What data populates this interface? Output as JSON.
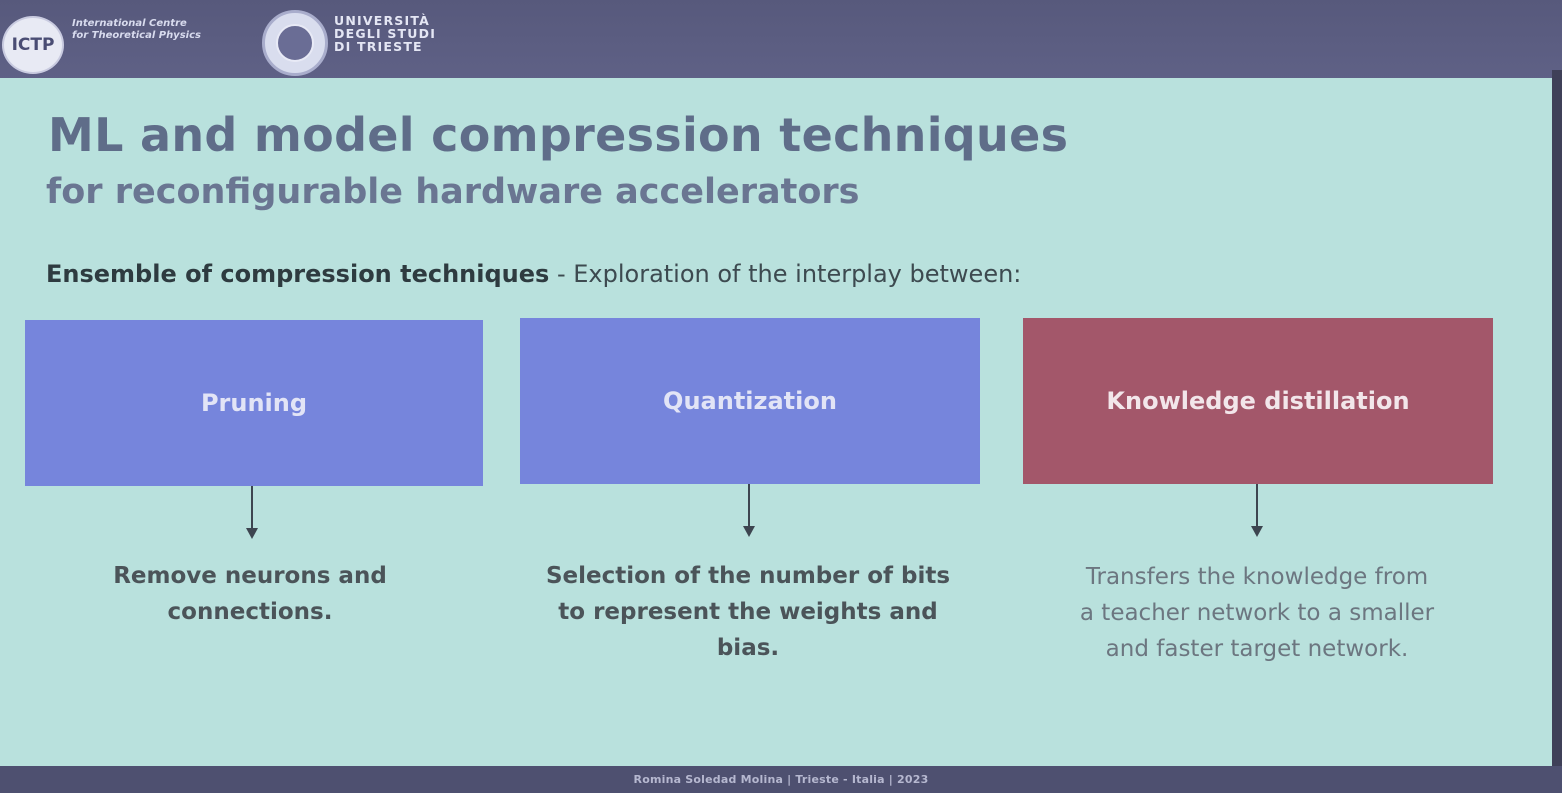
{
  "header": {
    "ictp_logo_text": "ICTP",
    "ictp_tagline_small": "",
    "ictp_name_line1": "International Centre",
    "ictp_name_line2": "for Theoretical Physics",
    "university_line1": "UNIVERSITÀ",
    "university_line2": "DEGLI STUDI",
    "university_line3": "DI TRIESTE"
  },
  "slide": {
    "title": "ML and model compression techniques",
    "subtitle": "for reconfigurable hardware accelerators",
    "intro_bold": "Ensemble of compression techniques",
    "intro_rest": " - Exploration of the interplay between:",
    "techniques": [
      {
        "label": "Pruning",
        "desc_line1": "Remove neurons and",
        "desc_line2": "connections.",
        "desc_line3": ""
      },
      {
        "label": "Quantization",
        "desc_line1": "Selection of the number of bits",
        "desc_line2": "to represent the weights and",
        "desc_line3": "bias."
      },
      {
        "label": "Knowledge distillation",
        "desc_line1": "Transfers the knowledge from",
        "desc_line2": "a teacher network to a smaller",
        "desc_line3": "and faster target network."
      }
    ],
    "colors": {
      "slide_bg": "#b9e1dd",
      "box_blue": "#7685dc",
      "box_red": "#a3576a",
      "title": "#5f6d89"
    }
  },
  "footer": {
    "text": "Romina Soledad Molina | Trieste - Italia | 2023"
  }
}
